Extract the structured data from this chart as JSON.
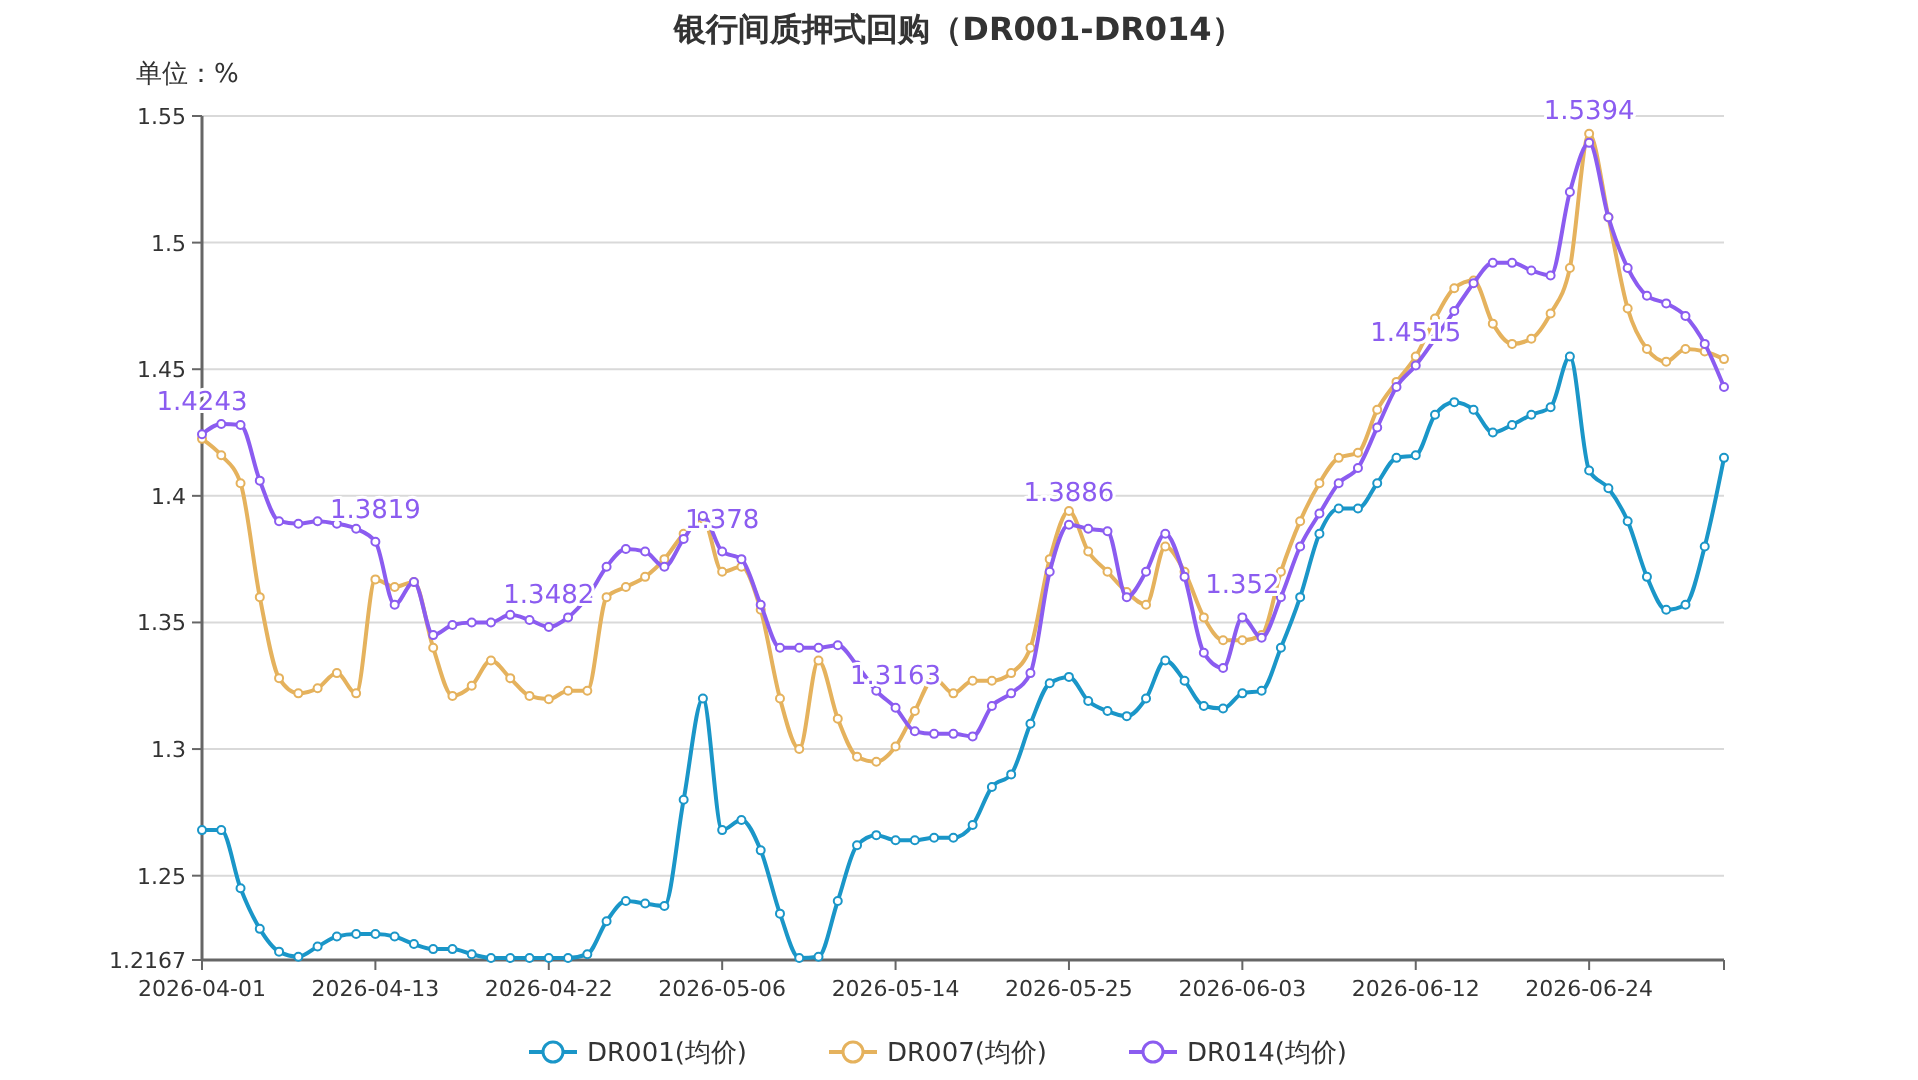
{
  "chart_data": {
    "type": "line",
    "title": "银行间质押式回购（DR001-DR014）",
    "ylabel": "单位：%",
    "categories": [
      "2026-04-01",
      null,
      null,
      null,
      null,
      null,
      null,
      null,
      null,
      "2026-04-13",
      null,
      null,
      null,
      null,
      null,
      null,
      null,
      null,
      "2026-04-22",
      null,
      null,
      null,
      null,
      null,
      null,
      null,
      null,
      "2026-05-06",
      null,
      null,
      null,
      null,
      null,
      null,
      null,
      null,
      "2026-05-14",
      null,
      null,
      null,
      null,
      null,
      null,
      null,
      null,
      "2026-05-25",
      null,
      null,
      null,
      null,
      null,
      null,
      null,
      null,
      "2026-06-03",
      null,
      null,
      null,
      null,
      null,
      null,
      null,
      null,
      "2026-06-12",
      null,
      null,
      null,
      null,
      null,
      null,
      null,
      null,
      "2026-06-24",
      null,
      null,
      null,
      null,
      null,
      null,
      null
    ],
    "series": [
      {
        "name": "DR001(均价)",
        "color": "#1a96c8",
        "values": [
          1.268,
          1.268,
          1.245,
          1.229,
          1.22,
          1.218,
          1.222,
          1.226,
          1.227,
          1.227,
          1.226,
          1.223,
          1.221,
          1.221,
          1.219,
          1.2175,
          1.2175,
          1.2175,
          1.2175,
          1.2175,
          1.219,
          1.232,
          1.24,
          1.239,
          1.238,
          1.28,
          1.32,
          1.268,
          1.272,
          1.26,
          1.235,
          1.2175,
          1.218,
          1.24,
          1.262,
          1.266,
          1.264,
          1.264,
          1.265,
          1.265,
          1.27,
          1.285,
          1.29,
          1.31,
          1.326,
          1.3285,
          1.319,
          1.315,
          1.313,
          1.32,
          1.335,
          1.327,
          1.317,
          1.316,
          1.322,
          1.323,
          1.34,
          1.36,
          1.385,
          1.395,
          1.395,
          1.405,
          1.415,
          1.416,
          1.432,
          1.437,
          1.434,
          1.425,
          1.428,
          1.432,
          1.435,
          1.455,
          1.41,
          1.403,
          1.39,
          1.368,
          1.355,
          1.357,
          1.38,
          1.415
        ]
      },
      {
        "name": "DR007(均价)",
        "color": "#e5b25d",
        "values": [
          1.4225,
          1.416,
          1.405,
          1.36,
          1.328,
          1.322,
          1.324,
          1.33,
          1.322,
          1.367,
          1.364,
          1.366,
          1.34,
          1.321,
          1.325,
          1.335,
          1.328,
          1.321,
          1.3197,
          1.323,
          1.323,
          1.36,
          1.364,
          1.368,
          1.375,
          1.385,
          1.391,
          1.37,
          1.372,
          1.355,
          1.32,
          1.3,
          1.335,
          1.312,
          1.297,
          1.295,
          1.301,
          1.315,
          1.328,
          1.322,
          1.327,
          1.327,
          1.33,
          1.34,
          1.375,
          1.394,
          1.378,
          1.37,
          1.362,
          1.357,
          1.38,
          1.37,
          1.352,
          1.343,
          1.343,
          1.345,
          1.37,
          1.39,
          1.405,
          1.415,
          1.417,
          1.434,
          1.445,
          1.455,
          1.47,
          1.482,
          1.485,
          1.468,
          1.46,
          1.462,
          1.472,
          1.49,
          1.543,
          1.51,
          1.474,
          1.458,
          1.453,
          1.458,
          1.457,
          1.454
        ]
      },
      {
        "name": "DR014(均价)",
        "color": "#8b5cf0",
        "values": [
          1.4243,
          1.4284,
          1.428,
          1.406,
          1.39,
          1.389,
          1.39,
          1.389,
          1.387,
          1.3819,
          1.357,
          1.366,
          1.345,
          1.349,
          1.35,
          1.35,
          1.353,
          1.351,
          1.3482,
          1.352,
          1.36,
          1.372,
          1.379,
          1.378,
          1.372,
          1.383,
          1.392,
          1.378,
          1.375,
          1.357,
          1.34,
          1.34,
          1.34,
          1.341,
          1.333,
          1.323,
          1.3163,
          1.307,
          1.306,
          1.306,
          1.305,
          1.317,
          1.322,
          1.33,
          1.37,
          1.3886,
          1.387,
          1.386,
          1.36,
          1.37,
          1.385,
          1.368,
          1.338,
          1.332,
          1.352,
          1.344,
          1.36,
          1.38,
          1.393,
          1.405,
          1.411,
          1.427,
          1.443,
          1.4515,
          1.462,
          1.473,
          1.484,
          1.492,
          1.492,
          1.489,
          1.487,
          1.52,
          1.5394,
          1.51,
          1.49,
          1.479,
          1.476,
          1.471,
          1.46,
          1.443
        ],
        "value_labels": [
          "1.4243",
          null,
          null,
          null,
          null,
          null,
          null,
          null,
          null,
          "1.3819",
          null,
          null,
          null,
          null,
          null,
          null,
          null,
          null,
          "1.3482",
          null,
          null,
          null,
          null,
          null,
          null,
          null,
          null,
          "1.378",
          null,
          null,
          null,
          null,
          null,
          null,
          null,
          null,
          "1.3163",
          null,
          null,
          null,
          null,
          null,
          null,
          null,
          null,
          "1.3886",
          null,
          null,
          null,
          null,
          null,
          null,
          null,
          null,
          "1.352",
          null,
          null,
          null,
          null,
          null,
          null,
          null,
          null,
          "1.4515",
          null,
          null,
          null,
          null,
          null,
          null,
          null,
          null,
          "1.5394",
          null,
          null,
          null,
          null,
          null,
          null,
          null
        ]
      }
    ],
    "ylim": [
      1.2167,
      1.55
    ],
    "yticks": [
      1.2167,
      1.25,
      1.3,
      1.35,
      1.4,
      1.45,
      1.5,
      1.55
    ],
    "grid": "y",
    "legend": "bottom",
    "marker": "circle",
    "line_style": "solid"
  }
}
